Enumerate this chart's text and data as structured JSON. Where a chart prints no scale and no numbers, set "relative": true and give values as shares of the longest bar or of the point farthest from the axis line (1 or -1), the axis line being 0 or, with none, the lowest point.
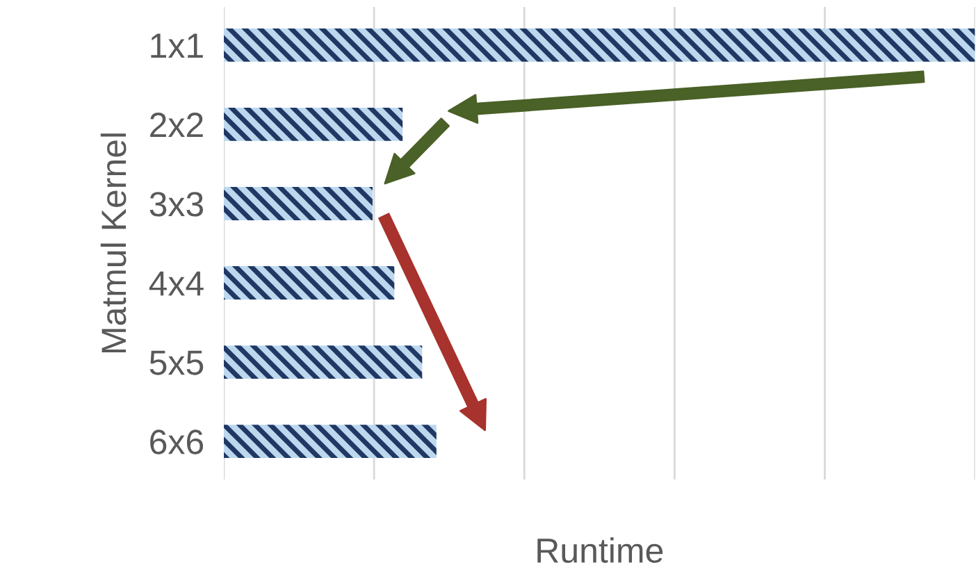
{
  "chart_data": {
    "type": "bar",
    "orientation": "horizontal",
    "relative": true,
    "categories": [
      "1x1",
      "2x2",
      "3x3",
      "4x4",
      "5x5",
      "6x6"
    ],
    "values": [
      1,
      0.238,
      0.198,
      0.227,
      0.264,
      0.283
    ],
    "color": "#bdd7ee",
    "xlabel": "Runtime",
    "ylabel": "Matmul Kernel",
    "grid": "x"
  }
}
